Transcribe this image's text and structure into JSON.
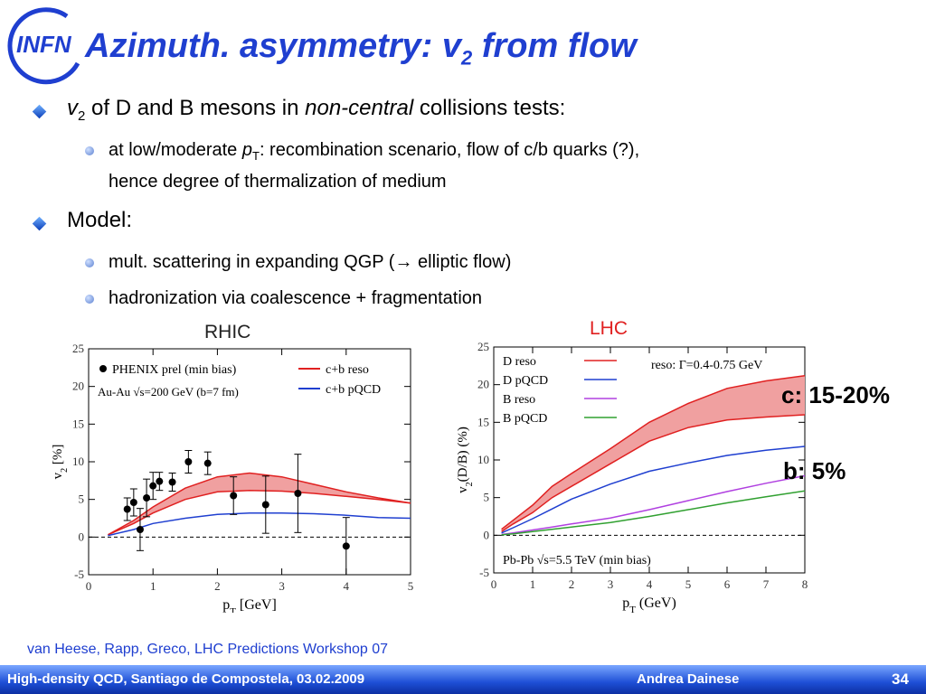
{
  "header": {
    "logo_text": "INFN",
    "title_main": "Azimuth. asymmetry: v",
    "title_sub": "2",
    "title_tail": " from flow"
  },
  "bullets": {
    "b1_v": "v",
    "b1_sub": "2",
    "b1_text": " of D and B mesons in ",
    "b1_italic": "non-central",
    "b1_tail": " collisions tests:",
    "b1a_pre": "at low/moderate ",
    "b1a_p": "p",
    "b1a_T": "T",
    "b1a_text": ": recombination scenario, flow of c/b quarks (?),",
    "b1a_line2": "hence degree of thermalization of medium",
    "b2_text": "Model:",
    "b2a_pre": "mult. scattering in expanding QGP (",
    "b2a_arrow": "→",
    "b2a_tail": " elliptic flow)",
    "b2b_text": "hadronization via coalescence + fragmentation"
  },
  "annotations": {
    "c_label": "c: 15-20%",
    "b_label": "b: 5%"
  },
  "reference": "van Heese, Rapp, Greco, LHC Predictions Workshop 07",
  "footer": {
    "left": "High-density QCD, Santiago de Compostela, 03.02.2009",
    "center": "Andrea Dainese",
    "page": "34"
  },
  "colors": {
    "title": "#1f3fd0",
    "band_red": "#f0a0a0",
    "line_red": "#e02020",
    "line_blue": "#1f3fd0",
    "line_violet": "#b040e0",
    "line_green": "#30a030"
  },
  "chart_data": [
    {
      "type": "line",
      "label": "RHIC",
      "xlabel": "p",
      "xlabel_sub": "T",
      "xlabel_unit": " [GeV]",
      "ylabel": "v",
      "ylabel_sub": "2",
      "ylabel_unit": " [%]",
      "xlim": [
        0,
        5
      ],
      "ylim": [
        -5,
        25
      ],
      "xticks": [
        0,
        1,
        2,
        3,
        4,
        5
      ],
      "yticks": [
        -5,
        0,
        5,
        10,
        15,
        20,
        25
      ],
      "legend": {
        "data": "PHENIX prel (min bias)",
        "system": "Au-Au √s=200 GeV (b=7 fm)",
        "reso": "c+b reso",
        "pqcd": "c+b pQCD"
      },
      "data_points": [
        {
          "x": 0.6,
          "y": 3.7,
          "err": 1.5
        },
        {
          "x": 0.7,
          "y": 4.6,
          "err": 1.8
        },
        {
          "x": 0.8,
          "y": 1.0,
          "err": 2.8
        },
        {
          "x": 0.9,
          "y": 5.2,
          "err": 2.5
        },
        {
          "x": 1.0,
          "y": 6.8,
          "err": 1.8
        },
        {
          "x": 1.1,
          "y": 7.4,
          "err": 1.2
        },
        {
          "x": 1.3,
          "y": 7.3,
          "err": 1.2
        },
        {
          "x": 1.55,
          "y": 10.0,
          "err": 1.5
        },
        {
          "x": 1.85,
          "y": 9.8,
          "err": 1.5
        },
        {
          "x": 2.25,
          "y": 5.5,
          "err": 2.5
        },
        {
          "x": 2.75,
          "y": 4.3,
          "err": 3.8
        },
        {
          "x": 3.25,
          "y": 5.8,
          "err": 5.2
        },
        {
          "x": 4.0,
          "y": -1.2,
          "err": 3.8
        }
      ],
      "band_upper": {
        "x": [
          0.3,
          0.7,
          1.0,
          1.5,
          2.0,
          2.5,
          3.0,
          3.5,
          4.0,
          4.5,
          5.0
        ],
        "y": [
          0.3,
          2.2,
          4.0,
          6.5,
          8.0,
          8.5,
          8.0,
          7.0,
          6.0,
          5.2,
          4.5
        ]
      },
      "band_lower": {
        "x": [
          0.3,
          0.7,
          1.0,
          1.5,
          2.0,
          2.5,
          3.0,
          3.5,
          4.0,
          4.5,
          5.0
        ],
        "y": [
          0.3,
          1.8,
          3.2,
          5.0,
          6.0,
          6.2,
          6.1,
          5.8,
          5.4,
          5.0,
          4.5
        ]
      },
      "pqcd_line": {
        "x": [
          0.3,
          0.7,
          1.0,
          1.5,
          2.0,
          2.5,
          3.0,
          3.5,
          4.0,
          4.5,
          5.0
        ],
        "y": [
          0.2,
          1.0,
          1.8,
          2.5,
          3.0,
          3.2,
          3.2,
          3.1,
          2.9,
          2.6,
          2.5
        ]
      }
    },
    {
      "type": "line",
      "label": "LHC",
      "xlabel": "p",
      "xlabel_sub": "T",
      "xlabel_unit": " (GeV)",
      "ylabel": "v",
      "ylabel_sub": "2",
      "ylabel_unit": "(D/B) (%)",
      "xlim": [
        0,
        8
      ],
      "ylim": [
        -5,
        25
      ],
      "xticks": [
        0,
        1,
        2,
        3,
        4,
        5,
        6,
        7,
        8
      ],
      "yticks": [
        -5,
        0,
        5,
        10,
        15,
        20,
        25
      ],
      "legend": {
        "d_reso": "D reso",
        "d_pqcd": "D pQCD",
        "b_reso": "B reso",
        "b_pqcd": "B pQCD",
        "reso_note": "reso: Γ=0.4-0.75 GeV",
        "system": "Pb-Pb √s=5.5 TeV (min bias)"
      },
      "d_reso_upper": {
        "x": [
          0.2,
          0.5,
          1,
          1.5,
          2,
          3,
          4,
          5,
          6,
          7,
          8
        ],
        "y": [
          0.8,
          2.0,
          4.0,
          6.5,
          8.2,
          11.5,
          15.0,
          17.5,
          19.5,
          20.5,
          21.2
        ]
      },
      "d_reso_lower": {
        "x": [
          0.2,
          0.5,
          1,
          1.5,
          2,
          3,
          4,
          5,
          6,
          7,
          8
        ],
        "y": [
          0.5,
          1.5,
          3.0,
          5.0,
          6.5,
          9.5,
          12.5,
          14.3,
          15.3,
          15.7,
          16.0
        ]
      },
      "d_pqcd": {
        "x": [
          0.2,
          0.5,
          1,
          1.5,
          2,
          3,
          4,
          5,
          6,
          7,
          8
        ],
        "y": [
          0.3,
          1.0,
          2.2,
          3.5,
          4.8,
          6.8,
          8.5,
          9.6,
          10.6,
          11.3,
          11.8
        ]
      },
      "b_reso": {
        "x": [
          0.2,
          0.5,
          1,
          1.5,
          2,
          3,
          4,
          5,
          6,
          7,
          8
        ],
        "y": [
          0.1,
          0.3,
          0.7,
          1.1,
          1.5,
          2.3,
          3.4,
          4.6,
          5.8,
          6.9,
          7.9
        ]
      },
      "b_pqcd": {
        "x": [
          0.2,
          0.5,
          1,
          1.5,
          2,
          3,
          4,
          5,
          6,
          7,
          8
        ],
        "y": [
          0.05,
          0.2,
          0.5,
          0.8,
          1.1,
          1.7,
          2.5,
          3.4,
          4.3,
          5.1,
          5.9
        ]
      }
    }
  ]
}
